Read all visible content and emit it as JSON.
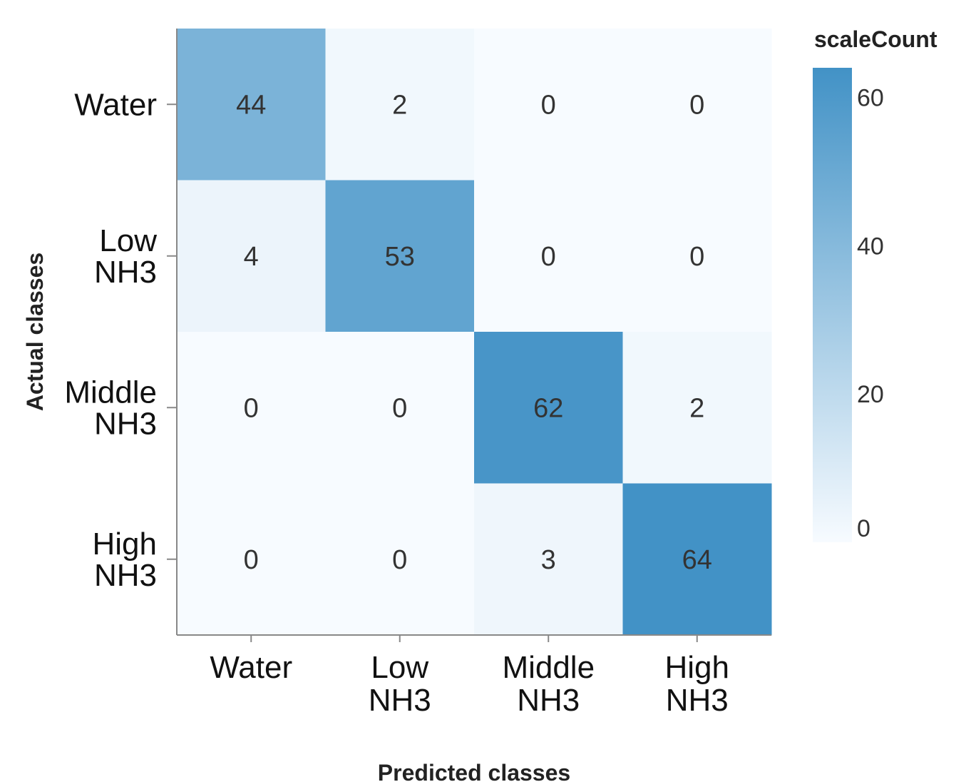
{
  "chart_data": {
    "type": "heatmap",
    "x_categories": [
      [
        "Water"
      ],
      [
        "Low",
        "NH3"
      ],
      [
        "Middle",
        "NH3"
      ],
      [
        "High",
        "NH3"
      ]
    ],
    "y_categories": [
      [
        "Water"
      ],
      [
        "Low",
        "NH3"
      ],
      [
        "Middle",
        "NH3"
      ],
      [
        "High",
        "NH3"
      ]
    ],
    "values": [
      [
        44,
        2,
        0,
        0
      ],
      [
        4,
        53,
        0,
        0
      ],
      [
        0,
        0,
        62,
        2
      ],
      [
        0,
        0,
        3,
        64
      ]
    ],
    "xlabel": "Predicted classes",
    "ylabel": "Actual classes",
    "legend": {
      "title": "scaleCount",
      "ticks": [
        0,
        20,
        40,
        60
      ],
      "range": [
        0,
        64
      ],
      "placement": "right"
    },
    "colors": {
      "low": "#f7fbff",
      "high": "#4292c6",
      "axis": "#888888"
    }
  }
}
